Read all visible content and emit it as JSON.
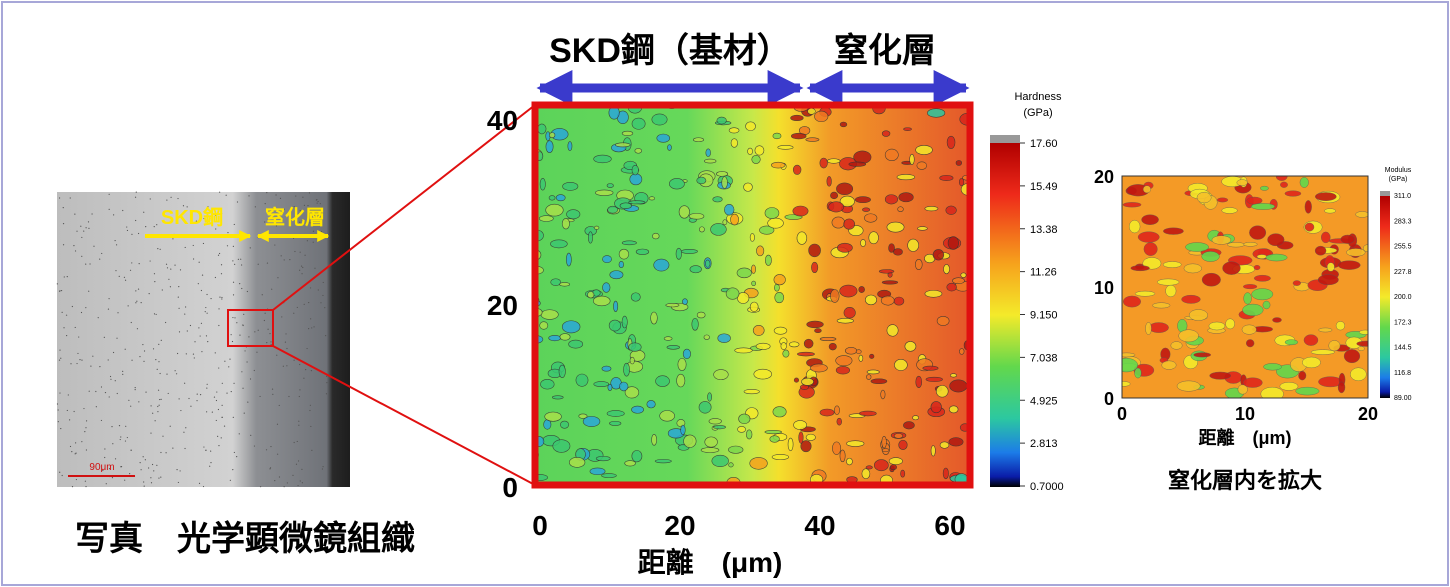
{
  "header": {
    "left": "SKD鋼（基材）",
    "right": "窒化層"
  },
  "photo": {
    "label_left": "SKD鋼",
    "label_right": "窒化層",
    "scale": "90μm",
    "caption": "写真　光学顕微鏡組織"
  },
  "hardness_map": {
    "yticks": [
      "40",
      "20",
      "0"
    ],
    "xticks": [
      "0",
      "20",
      "40",
      "60"
    ],
    "xlabel": "距離　(μm)",
    "colorbar_title": [
      "Hardness",
      "(GPa)"
    ],
    "colorbar_ticks": [
      "17.60",
      "15.49",
      "13.38",
      "11.26",
      "9.150",
      "7.038",
      "4.925",
      "2.813",
      "0.7000"
    ]
  },
  "modulus_map": {
    "yticks": [
      "20",
      "10",
      "0"
    ],
    "xticks": [
      "0",
      "10",
      "20"
    ],
    "xlabel": "距離　(μm)",
    "colorbar_title": [
      "Modulus",
      "(GPa)"
    ],
    "colorbar_ticks": [
      "311.0",
      "283.3",
      "255.5",
      "227.8",
      "200.0",
      "172.3",
      "144.5",
      "116.8",
      "89.00"
    ],
    "caption": "窒化層内を拡大"
  }
}
